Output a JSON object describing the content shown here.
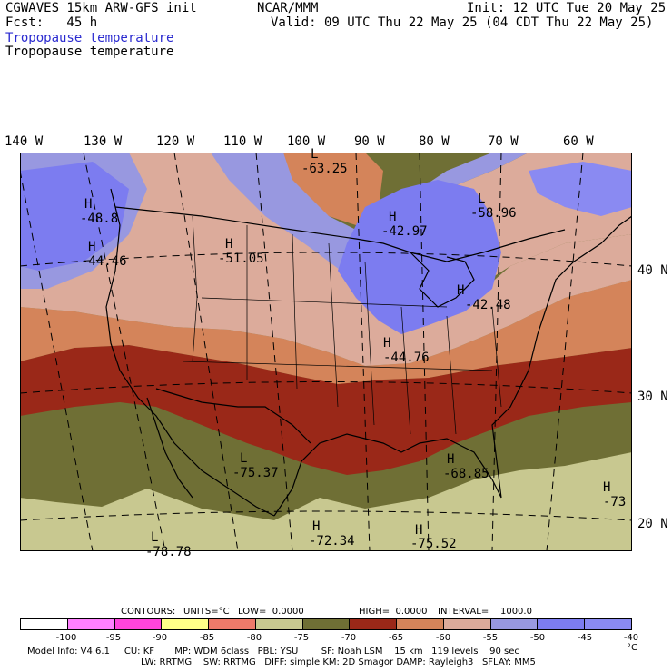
{
  "header": {
    "title": "CGWAVES 15km ARW-GFS init",
    "forecast": "Fcst:   45 h",
    "center": "NCAR/MMM",
    "init": "Init: 12 UTC Tue 20 May 25",
    "valid": "Valid: 09 UTC Thu 22 May 25 (04 CDT Thu 22 May 25)",
    "field_line1": "Tropopause temperature",
    "field_line2": "Tropopause temperature"
  },
  "map": {
    "lon_labels": [
      "140 W",
      "130 W",
      "120 W",
      "110 W",
      "100 W",
      "90 W",
      "80 W",
      "70 W",
      "60 W"
    ],
    "lat_labels": [
      "40 N",
      "30 N",
      "20 N"
    ],
    "centers": [
      {
        "type": "H",
        "value": "-48.8"
      },
      {
        "type": "H",
        "value": "-44.46"
      },
      {
        "type": "H",
        "value": "-51.05"
      },
      {
        "type": "L",
        "value": "-63.25"
      },
      {
        "type": "H",
        "value": "-42.97"
      },
      {
        "type": "L",
        "value": "-58.96"
      },
      {
        "type": "H",
        "value": "-42.48"
      },
      {
        "type": "H",
        "value": "-44.76"
      },
      {
        "type": "L",
        "value": "-75.37"
      },
      {
        "type": "H",
        "value": "-68.85"
      },
      {
        "type": "H",
        "value": "-73"
      },
      {
        "type": "H",
        "value": "-72.34"
      },
      {
        "type": "H",
        "value": "-75.52"
      },
      {
        "type": "L",
        "value": "-78.78"
      }
    ],
    "colors": {
      "lt_neg75": "#c8c890",
      "neg75_70": "#6f6f35",
      "neg70_65": "#9a2818",
      "neg65_60": "#d4845a",
      "neg60_55": "#dcab9b",
      "neg55_50": "#9898e0",
      "neg50_45": "#7c7cf0",
      "neg45_40": "#8a8af2"
    }
  },
  "contours_info": {
    "label": "CONTOURS:",
    "units": "UNITS=°C",
    "low": "LOW=  0.0000",
    "high": "HIGH=  0.0000",
    "interval": "INTERVAL=    1000.0"
  },
  "legend": {
    "colors": [
      "#ffffff",
      "#ff80ff",
      "#ff44dd",
      "#ffff88",
      "#ee7a6a",
      "#c8c890",
      "#6f6f35",
      "#9a2818",
      "#d4845a",
      "#dcab9b",
      "#9898e0",
      "#7c7cf0",
      "#8a8af2"
    ],
    "ticks": [
      "-100",
      "-95",
      "-90",
      "-85",
      "-80",
      "-75",
      "-70",
      "-65",
      "-60",
      "-55",
      "-50",
      "-45",
      "-40"
    ],
    "unit": "°C"
  },
  "footer": {
    "line1": "Model Info: V4.6.1     CU: KF       MP: WDM 6class   PBL: YSU        SF: Noah LSM    15 km   119 levels    90 sec",
    "line2": "LW: RRTMG    SW: RRTMG   DIFF: simple KM: 2D Smagor DAMP: Rayleigh3   SFLAY: MM5"
  }
}
